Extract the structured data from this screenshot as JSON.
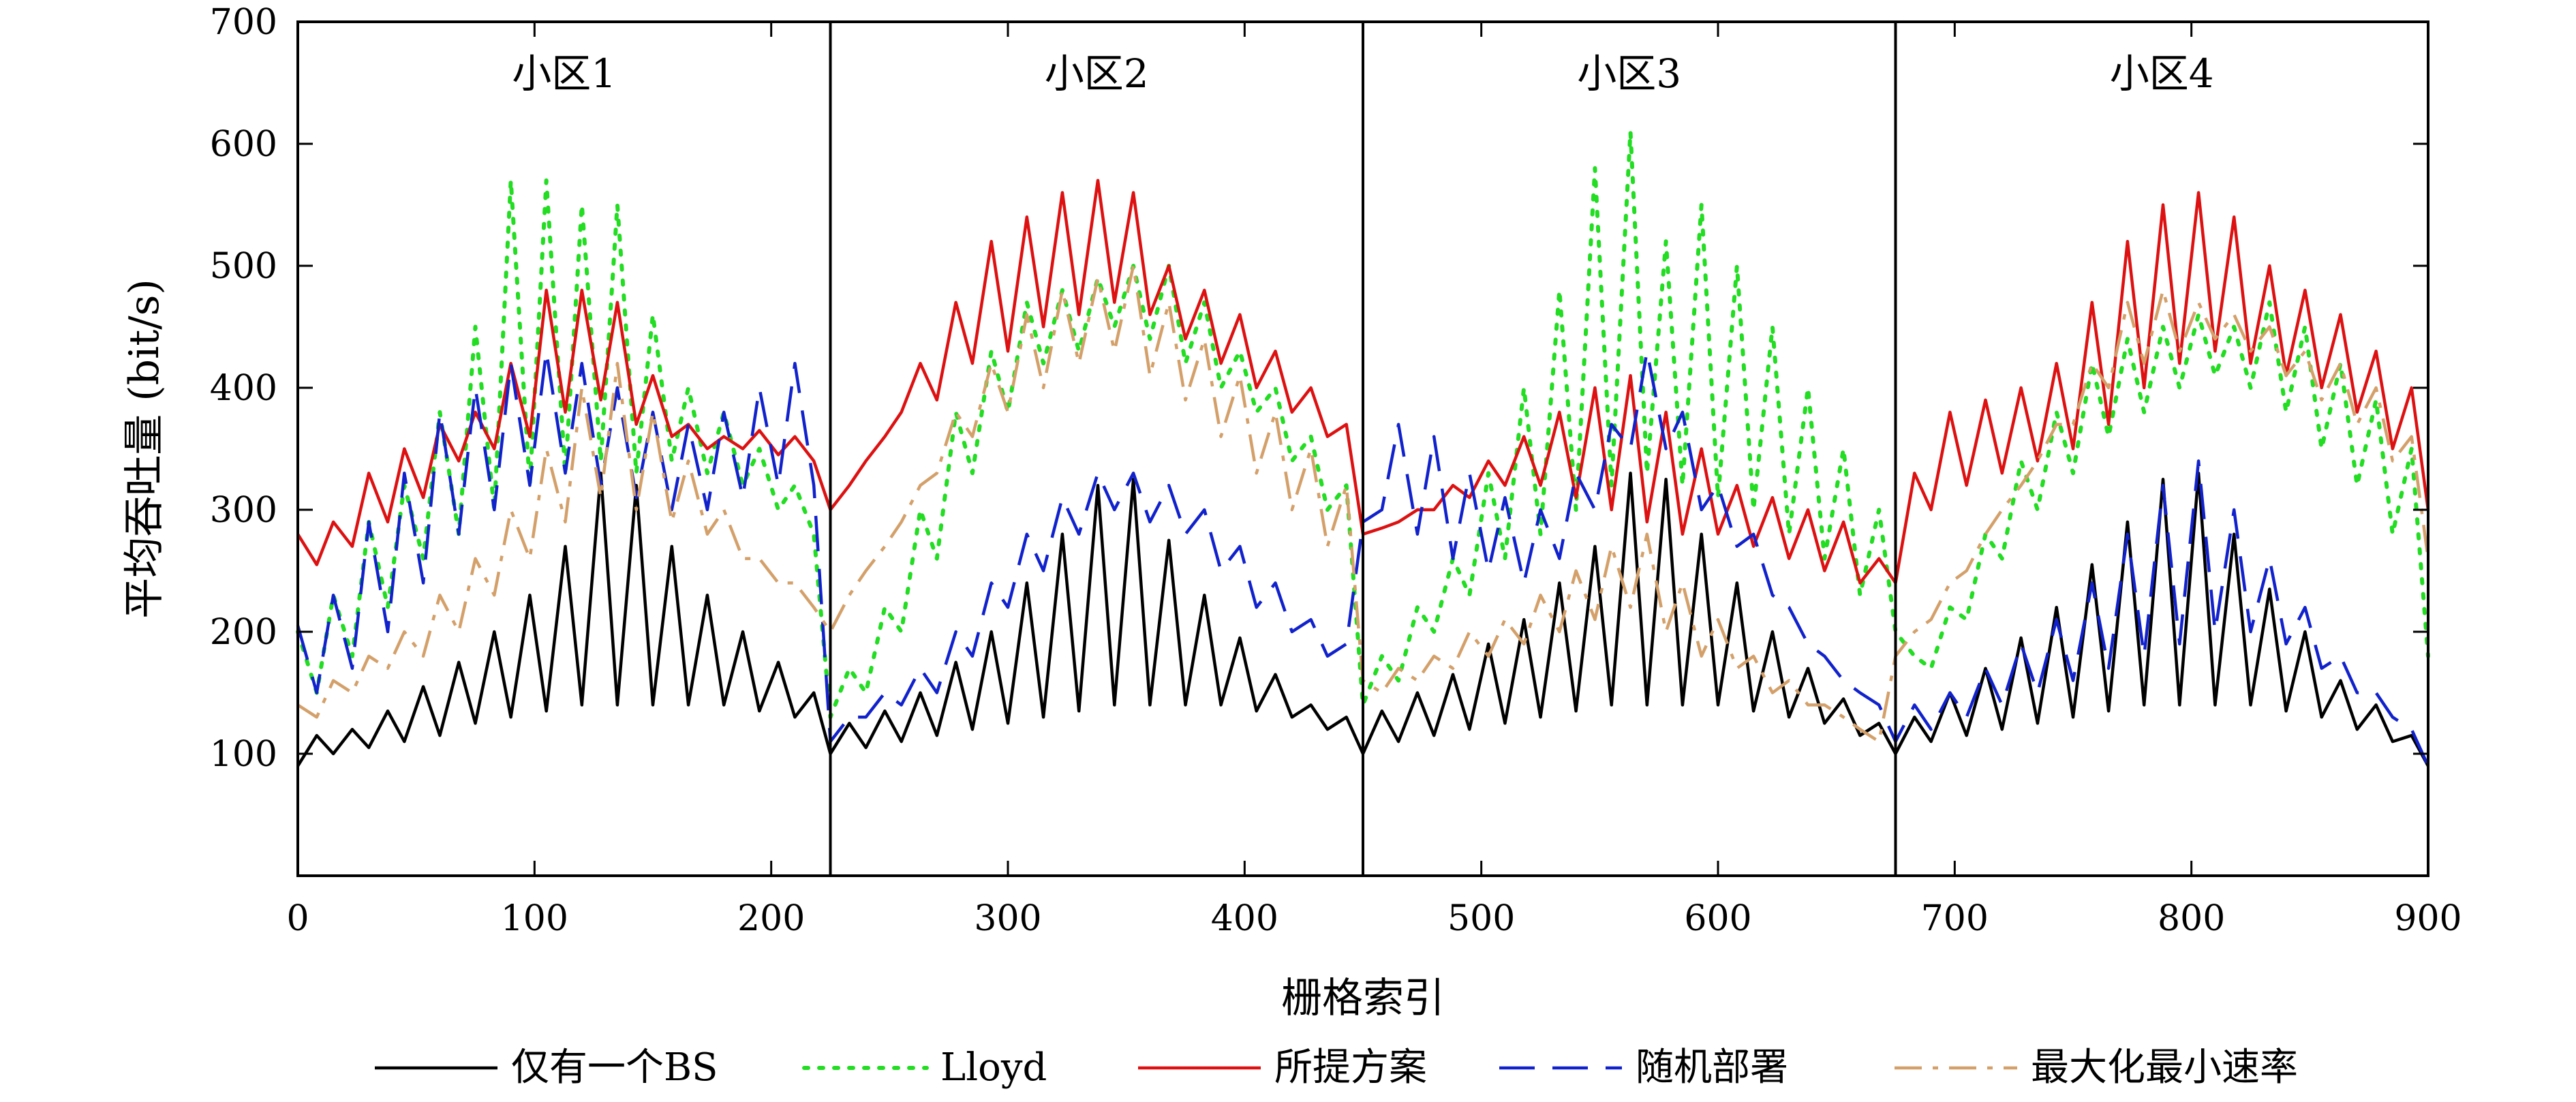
{
  "chart_data": {
    "type": "line",
    "xlabel": "栅格索引",
    "ylabel": "平均吞吐量 (bit/s)",
    "xlim": [
      0,
      900
    ],
    "ylim": [
      0,
      700
    ],
    "xticks": [
      0,
      100,
      200,
      300,
      400,
      500,
      600,
      700,
      800,
      900
    ],
    "yticks": [
      100,
      200,
      300,
      400,
      500,
      600,
      700
    ],
    "grid": false,
    "legend_position": "bottom",
    "regions": [
      {
        "label": "小区1",
        "start": 0,
        "end": 225
      },
      {
        "label": "小区2",
        "start": 225,
        "end": 450
      },
      {
        "label": "小区3",
        "start": 450,
        "end": 675
      },
      {
        "label": "小区4",
        "start": 675,
        "end": 900
      }
    ],
    "series_style_note": "",
    "series": [
      {
        "name": "仅有一个BS",
        "color": "#000000",
        "dash": "solid",
        "x": [
          0,
          8,
          15,
          23,
          30,
          38,
          45,
          53,
          60,
          68,
          75,
          83,
          90,
          98,
          105,
          113,
          120,
          128,
          135,
          143,
          150,
          158,
          165,
          173,
          180,
          188,
          195,
          203,
          210,
          218,
          225,
          233,
          240,
          248,
          255,
          263,
          270,
          278,
          285,
          293,
          300,
          308,
          315,
          323,
          330,
          338,
          345,
          353,
          360,
          368,
          375,
          383,
          390,
          398,
          405,
          413,
          420,
          428,
          435,
          443,
          450,
          458,
          465,
          473,
          480,
          488,
          495,
          503,
          510,
          518,
          525,
          533,
          540,
          548,
          555,
          563,
          570,
          578,
          585,
          593,
          600,
          608,
          615,
          623,
          630,
          638,
          645,
          653,
          660,
          668,
          675,
          683,
          690,
          698,
          705,
          713,
          720,
          728,
          735,
          743,
          750,
          758,
          765,
          773,
          780,
          788,
          795,
          803,
          810,
          818,
          825,
          833,
          840,
          848,
          855,
          863,
          870,
          878,
          885,
          893,
          900
        ],
        "values": [
          90,
          115,
          100,
          120,
          105,
          135,
          110,
          155,
          115,
          175,
          125,
          200,
          130,
          230,
          135,
          270,
          140,
          330,
          140,
          320,
          140,
          270,
          140,
          230,
          140,
          200,
          135,
          175,
          130,
          150,
          100,
          125,
          105,
          135,
          110,
          150,
          115,
          175,
          120,
          200,
          125,
          240,
          130,
          280,
          135,
          320,
          140,
          325,
          140,
          275,
          140,
          230,
          140,
          195,
          135,
          165,
          130,
          140,
          120,
          130,
          100,
          135,
          110,
          150,
          115,
          165,
          120,
          190,
          125,
          210,
          130,
          240,
          135,
          270,
          140,
          330,
          140,
          325,
          140,
          280,
          140,
          240,
          135,
          200,
          130,
          170,
          125,
          145,
          115,
          125,
          100,
          130,
          110,
          150,
          115,
          170,
          120,
          195,
          125,
          220,
          130,
          255,
          135,
          290,
          140,
          325,
          140,
          330,
          140,
          280,
          140,
          235,
          135,
          200,
          130,
          160,
          120,
          140,
          110,
          115,
          90
        ]
      },
      {
        "name": "Lloyd",
        "color": "#22dd22",
        "dash": "dotted",
        "x": [
          0,
          8,
          15,
          23,
          30,
          38,
          45,
          53,
          60,
          68,
          75,
          83,
          90,
          98,
          105,
          113,
          120,
          128,
          135,
          143,
          150,
          158,
          165,
          173,
          180,
          188,
          195,
          203,
          210,
          218,
          225,
          233,
          240,
          248,
          255,
          263,
          270,
          278,
          285,
          293,
          300,
          308,
          315,
          323,
          330,
          338,
          345,
          353,
          360,
          368,
          375,
          383,
          390,
          398,
          405,
          413,
          420,
          428,
          435,
          443,
          450,
          458,
          465,
          473,
          480,
          488,
          495,
          503,
          510,
          518,
          525,
          533,
          540,
          548,
          555,
          563,
          570,
          578,
          585,
          593,
          600,
          608,
          615,
          623,
          630,
          638,
          645,
          653,
          660,
          668,
          675,
          683,
          690,
          698,
          705,
          713,
          720,
          728,
          735,
          743,
          750,
          758,
          765,
          773,
          780,
          788,
          795,
          803,
          810,
          818,
          825,
          833,
          840,
          848,
          855,
          863,
          870,
          878,
          885,
          893,
          900
        ],
        "values": [
          200,
          150,
          230,
          180,
          290,
          220,
          320,
          260,
          380,
          280,
          450,
          300,
          570,
          320,
          570,
          330,
          550,
          340,
          550,
          330,
          460,
          340,
          400,
          330,
          380,
          320,
          350,
          300,
          320,
          280,
          130,
          170,
          150,
          220,
          200,
          300,
          260,
          380,
          330,
          430,
          380,
          470,
          420,
          480,
          430,
          490,
          450,
          500,
          440,
          500,
          420,
          470,
          400,
          430,
          380,
          400,
          340,
          360,
          300,
          320,
          140,
          180,
          160,
          220,
          200,
          260,
          230,
          330,
          260,
          400,
          280,
          480,
          300,
          580,
          320,
          610,
          330,
          520,
          320,
          550,
          310,
          500,
          300,
          450,
          280,
          400,
          260,
          350,
          230,
          300,
          200,
          180,
          170,
          220,
          210,
          280,
          260,
          340,
          300,
          380,
          330,
          420,
          360,
          440,
          380,
          450,
          400,
          460,
          410,
          450,
          400,
          470,
          380,
          450,
          350,
          420,
          320,
          390,
          280,
          350,
          180
        ]
      },
      {
        "name": "所提方案",
        "color": "#dd1111",
        "dash": "solid",
        "x": [
          0,
          8,
          15,
          23,
          30,
          38,
          45,
          53,
          60,
          68,
          75,
          83,
          90,
          98,
          105,
          113,
          120,
          128,
          135,
          143,
          150,
          158,
          165,
          173,
          180,
          188,
          195,
          203,
          210,
          218,
          225,
          233,
          240,
          248,
          255,
          263,
          270,
          278,
          285,
          293,
          300,
          308,
          315,
          323,
          330,
          338,
          345,
          353,
          360,
          368,
          375,
          383,
          390,
          398,
          405,
          413,
          420,
          428,
          435,
          443,
          450,
          458,
          465,
          473,
          480,
          488,
          495,
          503,
          510,
          518,
          525,
          533,
          540,
          548,
          555,
          563,
          570,
          578,
          585,
          593,
          600,
          608,
          615,
          623,
          630,
          638,
          645,
          653,
          660,
          668,
          675,
          683,
          690,
          698,
          705,
          713,
          720,
          728,
          735,
          743,
          750,
          758,
          765,
          773,
          780,
          788,
          795,
          803,
          810,
          818,
          825,
          833,
          840,
          848,
          855,
          863,
          870,
          878,
          885,
          893,
          900
        ],
        "values": [
          280,
          255,
          290,
          270,
          330,
          290,
          350,
          310,
          370,
          340,
          380,
          350,
          420,
          360,
          480,
          380,
          480,
          390,
          470,
          370,
          410,
          360,
          370,
          350,
          360,
          350,
          365,
          345,
          360,
          340,
          300,
          320,
          340,
          360,
          380,
          420,
          390,
          470,
          420,
          520,
          430,
          540,
          450,
          560,
          460,
          570,
          470,
          560,
          460,
          500,
          440,
          480,
          420,
          460,
          400,
          430,
          380,
          400,
          360,
          370,
          280,
          285,
          290,
          300,
          300,
          320,
          310,
          340,
          320,
          360,
          320,
          380,
          310,
          400,
          300,
          410,
          290,
          380,
          280,
          350,
          280,
          320,
          270,
          310,
          260,
          300,
          250,
          290,
          240,
          260,
          240,
          330,
          300,
          380,
          320,
          390,
          330,
          400,
          340,
          420,
          350,
          470,
          370,
          520,
          400,
          550,
          420,
          560,
          430,
          540,
          420,
          500,
          410,
          480,
          400,
          460,
          380,
          430,
          350,
          400,
          300
        ]
      },
      {
        "name": "随机部署",
        "color": "#1122cc",
        "dash": "dashed",
        "x": [
          0,
          8,
          15,
          23,
          30,
          38,
          45,
          53,
          60,
          68,
          75,
          83,
          90,
          98,
          105,
          113,
          120,
          128,
          135,
          143,
          150,
          158,
          165,
          173,
          180,
          188,
          195,
          203,
          210,
          218,
          225,
          233,
          240,
          248,
          255,
          263,
          270,
          278,
          285,
          293,
          300,
          308,
          315,
          323,
          330,
          338,
          345,
          353,
          360,
          368,
          375,
          383,
          390,
          398,
          405,
          413,
          420,
          428,
          435,
          443,
          450,
          458,
          465,
          473,
          480,
          488,
          495,
          503,
          510,
          518,
          525,
          533,
          540,
          548,
          555,
          563,
          570,
          578,
          585,
          593,
          600,
          608,
          615,
          623,
          630,
          638,
          645,
          653,
          660,
          668,
          675,
          683,
          690,
          698,
          705,
          713,
          720,
          728,
          735,
          743,
          750,
          758,
          765,
          773,
          780,
          788,
          795,
          803,
          810,
          818,
          825,
          833,
          840,
          848,
          855,
          863,
          870,
          878,
          885,
          893,
          900
        ],
        "values": [
          205,
          150,
          230,
          170,
          290,
          200,
          330,
          240,
          380,
          280,
          400,
          300,
          420,
          320,
          430,
          330,
          420,
          320,
          400,
          310,
          380,
          300,
          370,
          300,
          380,
          310,
          400,
          320,
          420,
          320,
          110,
          130,
          130,
          150,
          140,
          170,
          150,
          200,
          180,
          240,
          220,
          280,
          250,
          310,
          280,
          330,
          300,
          330,
          290,
          320,
          280,
          300,
          250,
          270,
          220,
          240,
          200,
          210,
          180,
          190,
          290,
          300,
          370,
          280,
          360,
          260,
          330,
          250,
          310,
          240,
          300,
          260,
          330,
          300,
          370,
          350,
          430,
          350,
          380,
          300,
          320,
          270,
          280,
          230,
          220,
          190,
          180,
          160,
          150,
          140,
          110,
          140,
          120,
          150,
          130,
          170,
          140,
          190,
          150,
          210,
          160,
          240,
          170,
          280,
          180,
          320,
          190,
          340,
          200,
          300,
          200,
          260,
          190,
          220,
          170,
          180,
          150,
          150,
          130,
          120,
          90
        ]
      },
      {
        "name": "最大化最小速率",
        "color": "#d4a06a",
        "dash": "dashdot",
        "x": [
          0,
          8,
          15,
          23,
          30,
          38,
          45,
          53,
          60,
          68,
          75,
          83,
          90,
          98,
          105,
          113,
          120,
          128,
          135,
          143,
          150,
          158,
          165,
          173,
          180,
          188,
          195,
          203,
          210,
          218,
          225,
          233,
          240,
          248,
          255,
          263,
          270,
          278,
          285,
          293,
          300,
          308,
          315,
          323,
          330,
          338,
          345,
          353,
          360,
          368,
          375,
          383,
          390,
          398,
          405,
          413,
          420,
          428,
          435,
          443,
          450,
          458,
          465,
          473,
          480,
          488,
          495,
          503,
          510,
          518,
          525,
          533,
          540,
          548,
          555,
          563,
          570,
          578,
          585,
          593,
          600,
          608,
          615,
          623,
          630,
          638,
          645,
          653,
          660,
          668,
          675,
          683,
          690,
          698,
          705,
          713,
          720,
          728,
          735,
          743,
          750,
          758,
          765,
          773,
          780,
          788,
          795,
          803,
          810,
          818,
          825,
          833,
          840,
          848,
          855,
          863,
          870,
          878,
          885,
          893,
          900
        ],
        "values": [
          140,
          130,
          160,
          150,
          180,
          170,
          200,
          180,
          230,
          200,
          260,
          230,
          300,
          260,
          350,
          290,
          400,
          310,
          420,
          300,
          380,
          290,
          340,
          280,
          300,
          260,
          260,
          240,
          240,
          220,
          200,
          230,
          250,
          270,
          290,
          320,
          330,
          380,
          360,
          420,
          380,
          460,
          400,
          480,
          420,
          490,
          430,
          500,
          410,
          470,
          390,
          440,
          360,
          410,
          330,
          380,
          300,
          350,
          270,
          320,
          160,
          150,
          170,
          160,
          180,
          170,
          200,
          180,
          210,
          190,
          230,
          200,
          250,
          210,
          270,
          220,
          280,
          200,
          240,
          180,
          210,
          170,
          180,
          150,
          160,
          140,
          140,
          130,
          120,
          110,
          180,
          200,
          210,
          240,
          250,
          280,
          300,
          320,
          340,
          370,
          370,
          420,
          400,
          470,
          420,
          480,
          430,
          470,
          440,
          460,
          430,
          450,
          410,
          430,
          390,
          420,
          370,
          400,
          340,
          360,
          260
        ]
      }
    ]
  }
}
